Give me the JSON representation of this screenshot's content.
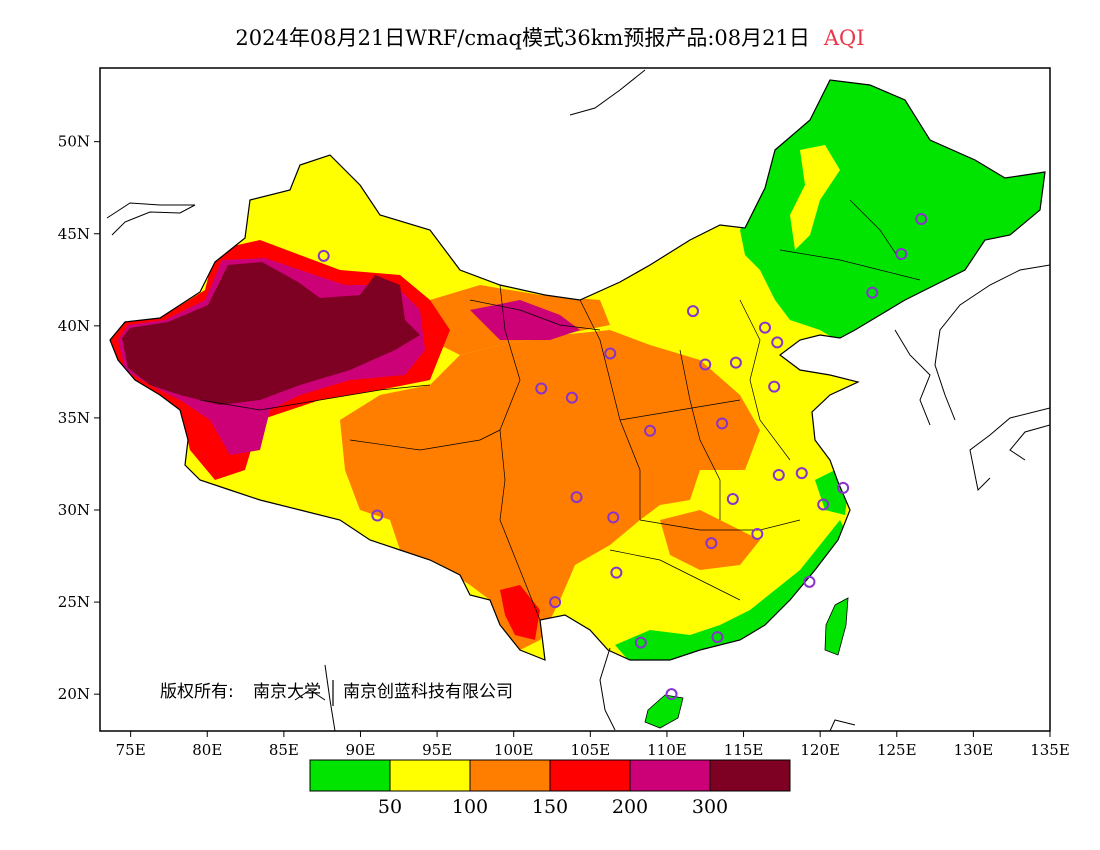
{
  "title": {
    "main": "2024年08月21日WRF/cmaq模式36km预报产品:08月21日",
    "variable": "AQI"
  },
  "axes": {
    "lon_ticks": [
      "75E",
      "80E",
      "85E",
      "90E",
      "95E",
      "100E",
      "105E",
      "110E",
      "115E",
      "120E",
      "125E",
      "130E",
      "135E"
    ],
    "lat_ticks": [
      "20N",
      "25N",
      "30N",
      "35N",
      "40N",
      "45N",
      "50N"
    ],
    "lon_range": [
      73,
      135
    ],
    "lat_range": [
      18,
      54
    ]
  },
  "copyright": {
    "prefix": "版权所有:",
    "org1": "南京大学",
    "org2": "南京创蓝科技有限公司"
  },
  "legend": {
    "colors": [
      "#00e400",
      "#ffff00",
      "#ff7e00",
      "#ff0000",
      "#cc0077",
      "#7e0023"
    ],
    "labels": [
      "50",
      "100",
      "150",
      "200",
      "300"
    ]
  },
  "colors": {
    "land_default": "#ffff00",
    "accent_title": "#e8364a",
    "station_marker": "#8833cc"
  },
  "stations": [
    {
      "lon": 87.6,
      "lat": 43.8
    },
    {
      "lon": 91.1,
      "lat": 29.7
    },
    {
      "lon": 101.8,
      "lat": 36.6
    },
    {
      "lon": 103.8,
      "lat": 36.1
    },
    {
      "lon": 106.3,
      "lat": 38.5
    },
    {
      "lon": 104.1,
      "lat": 30.7
    },
    {
      "lon": 106.5,
      "lat": 29.6
    },
    {
      "lon": 102.7,
      "lat": 25.0
    },
    {
      "lon": 106.7,
      "lat": 26.6
    },
    {
      "lon": 108.3,
      "lat": 22.8
    },
    {
      "lon": 110.3,
      "lat": 20.0
    },
    {
      "lon": 113.3,
      "lat": 23.1
    },
    {
      "lon": 112.9,
      "lat": 28.2
    },
    {
      "lon": 115.9,
      "lat": 28.7
    },
    {
      "lon": 114.3,
      "lat": 30.6
    },
    {
      "lon": 108.9,
      "lat": 34.3
    },
    {
      "lon": 113.6,
      "lat": 34.7
    },
    {
      "lon": 112.5,
      "lat": 37.9
    },
    {
      "lon": 114.5,
      "lat": 38.0
    },
    {
      "lon": 111.7,
      "lat": 40.8
    },
    {
      "lon": 116.4,
      "lat": 39.9
    },
    {
      "lon": 117.2,
      "lat": 39.1
    },
    {
      "lon": 117.0,
      "lat": 36.7
    },
    {
      "lon": 117.3,
      "lat": 31.9
    },
    {
      "lon": 118.8,
      "lat": 32.0
    },
    {
      "lon": 120.2,
      "lat": 30.3
    },
    {
      "lon": 121.5,
      "lat": 31.2
    },
    {
      "lon": 119.3,
      "lat": 26.1
    },
    {
      "lon": 123.4,
      "lat": 41.8
    },
    {
      "lon": 125.3,
      "lat": 43.9
    },
    {
      "lon": 126.6,
      "lat": 45.8
    }
  ]
}
